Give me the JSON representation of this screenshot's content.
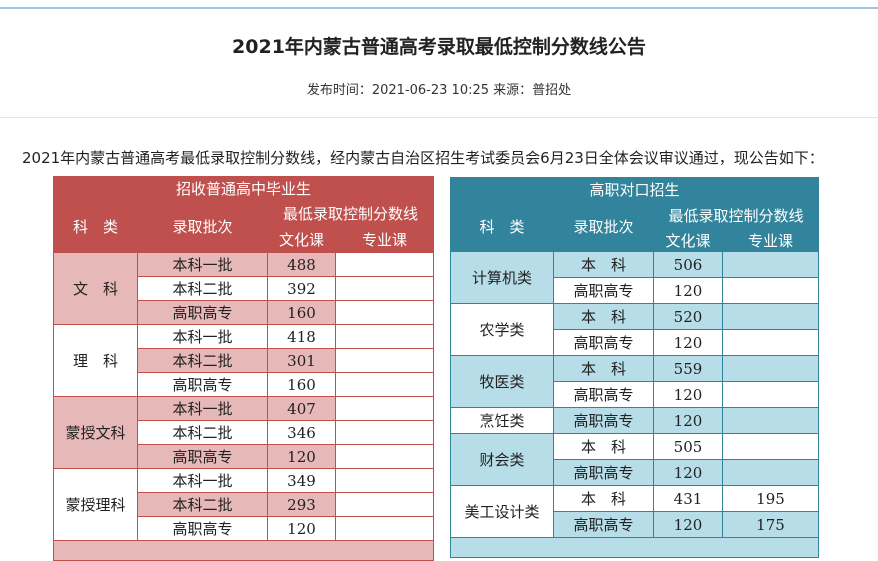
{
  "header": {
    "title": "2021年内蒙古普通高考录取最低控制分数线公告",
    "meta": "发布时间：2021-06-23 10:25 来源：普招处"
  },
  "intro": "2021年内蒙古普通高考最低录取控制分数线，经内蒙古自治区招生考试委员会6月23日全体会议审议通过，现公告如下：",
  "tables": [
    {
      "title": "招收普通高中毕业生",
      "headers": {
        "category": "科　类",
        "batch": "录取批次",
        "score": "最低录取控制分数线",
        "culture": "文化课",
        "major": "专业课"
      },
      "groups": [
        {
          "name": "文　科",
          "rows": [
            {
              "batch": "本科一批",
              "culture": 488
            },
            {
              "batch": "本科二批",
              "culture": 392
            },
            {
              "batch": "高职高专",
              "culture": 160
            }
          ]
        },
        {
          "name": "理　科",
          "rows": [
            {
              "batch": "本科一批",
              "culture": 418
            },
            {
              "batch": "本科二批",
              "culture": 301
            },
            {
              "batch": "高职高专",
              "culture": 160
            }
          ]
        },
        {
          "name": "蒙授文科",
          "rows": [
            {
              "batch": "本科一批",
              "culture": 407
            },
            {
              "batch": "本科二批",
              "culture": 346
            },
            {
              "batch": "高职高专",
              "culture": 120
            }
          ]
        },
        {
          "name": "蒙授理科",
          "rows": [
            {
              "batch": "本科一批",
              "culture": 349
            },
            {
              "batch": "本科二批",
              "culture": 293
            },
            {
              "batch": "高职高专",
              "culture": 120
            }
          ]
        }
      ]
    },
    {
      "title": "高职对口招生",
      "headers": {
        "category": "科　类",
        "batch": "录取批次",
        "score": "最低录取控制分数线",
        "culture": "文化课",
        "major": "专业课"
      },
      "groups": [
        {
          "name": "计算机类",
          "rows": [
            {
              "batch": "本　科",
              "culture": 506
            },
            {
              "batch": "高职高专",
              "culture": 120
            }
          ]
        },
        {
          "name": "农学类",
          "rows": [
            {
              "batch": "本　科",
              "culture": 520
            },
            {
              "batch": "高职高专",
              "culture": 120
            }
          ]
        },
        {
          "name": "牧医类",
          "rows": [
            {
              "batch": "本　科",
              "culture": 559
            },
            {
              "batch": "高职高专",
              "culture": 120
            }
          ]
        },
        {
          "name": "烹饪类",
          "rows": [
            {
              "batch": "高职高专",
              "culture": 120
            }
          ]
        },
        {
          "name": "财会类",
          "rows": [
            {
              "batch": "本　科",
              "culture": 505
            },
            {
              "batch": "高职高专",
              "culture": 120
            }
          ]
        },
        {
          "name": "美工设计类",
          "rows": [
            {
              "batch": "本　科",
              "culture": 431,
              "major": 195
            },
            {
              "batch": "高职高专",
              "culture": 120,
              "major": 175
            }
          ]
        }
      ]
    }
  ]
}
